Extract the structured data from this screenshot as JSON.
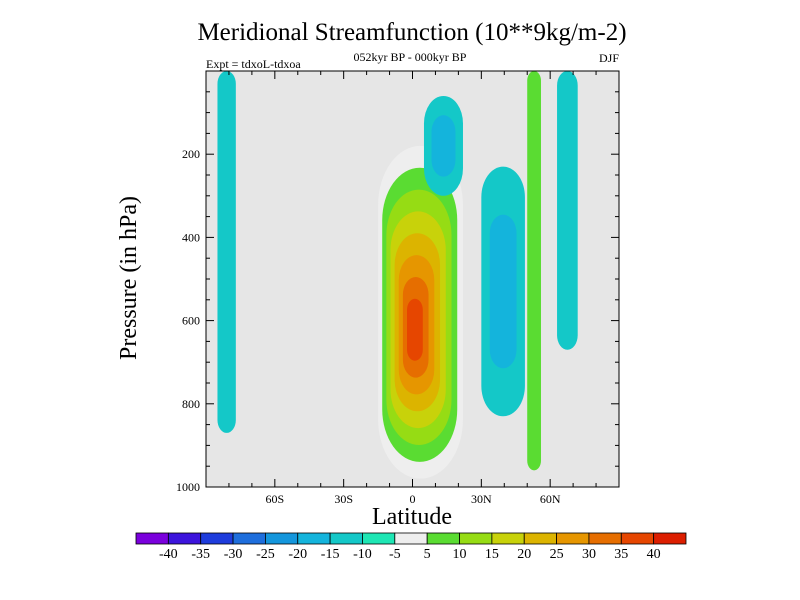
{
  "chart_data": {
    "type": "heatmap",
    "title": "Meridional Streamfunction (10**9kg/m-2)",
    "subtitle_center": "052kyr BP - 000kyr BP",
    "subtitle_left": "Expt = tdxoL-tdxoa",
    "subtitle_right": "DJF",
    "xlabel": "Latitude",
    "ylabel": "Pressure (in hPa)",
    "xlim": [
      -90,
      90
    ],
    "ylim": [
      0,
      1000
    ],
    "y_reversed": true,
    "x_ticks": [
      {
        "value": -60,
        "label": "60S"
      },
      {
        "value": -30,
        "label": "30S"
      },
      {
        "value": 0,
        "label": "0"
      },
      {
        "value": 30,
        "label": "30N"
      },
      {
        "value": 60,
        "label": "60N"
      }
    ],
    "y_ticks": [
      {
        "value": 200,
        "label": "200"
      },
      {
        "value": 400,
        "label": "400"
      },
      {
        "value": 600,
        "label": "600"
      },
      {
        "value": 800,
        "label": "800"
      },
      {
        "value": 1000,
        "label": "1000"
      }
    ],
    "background_color": "#e6e6e6",
    "colorbar": {
      "levels": [
        "-40",
        "-35",
        "-30",
        "-25",
        "-20",
        "-15",
        "-10",
        "-5",
        "5",
        "10",
        "15",
        "20",
        "25",
        "30",
        "35",
        "40"
      ],
      "colors": [
        "#7a00dc",
        "#3c14dc",
        "#1e3cdc",
        "#1e6edc",
        "#1496dc",
        "#14b4dc",
        "#14c8c8",
        "#1ee6b4",
        "#eeeeee",
        "#5adc32",
        "#96dc14",
        "#c8d20a",
        "#dcb400",
        "#e69600",
        "#e66e00",
        "#e64600",
        "#dc1e00"
      ]
    },
    "features": [
      {
        "name": "positive cell near equator",
        "sign": "positive",
        "peak": 40,
        "lat_range": [
          -15,
          22
        ],
        "pressure_range": [
          180,
          980
        ],
        "levels": [
          5,
          10,
          15,
          20,
          25,
          30,
          35,
          40
        ]
      },
      {
        "name": "negative cell upper troposphere",
        "sign": "negative",
        "peak": -15,
        "lat_range": [
          5,
          22
        ],
        "pressure_range": [
          60,
          300
        ],
        "levels": [
          -10,
          -15
        ]
      },
      {
        "name": "negative band southern high latitudes",
        "sign": "negative",
        "peak": -10,
        "lat_range": [
          -85,
          -77
        ],
        "pressure_range": [
          0,
          870
        ],
        "levels": [
          -10
        ]
      },
      {
        "name": "negative cell northern subtropics",
        "sign": "negative",
        "peak": -15,
        "lat_range": [
          30,
          49
        ],
        "pressure_range": [
          230,
          830
        ],
        "levels": [
          -10,
          -15
        ]
      },
      {
        "name": "positive band 55N",
        "sign": "positive",
        "peak": 10,
        "lat_range": [
          50,
          56
        ],
        "pressure_range": [
          0,
          960
        ],
        "levels": [
          10
        ]
      },
      {
        "name": "negative band northern high latitudes",
        "sign": "negative",
        "peak": -10,
        "lat_range": [
          63,
          72
        ],
        "pressure_range": [
          0,
          670
        ],
        "levels": [
          -10
        ]
      }
    ]
  }
}
